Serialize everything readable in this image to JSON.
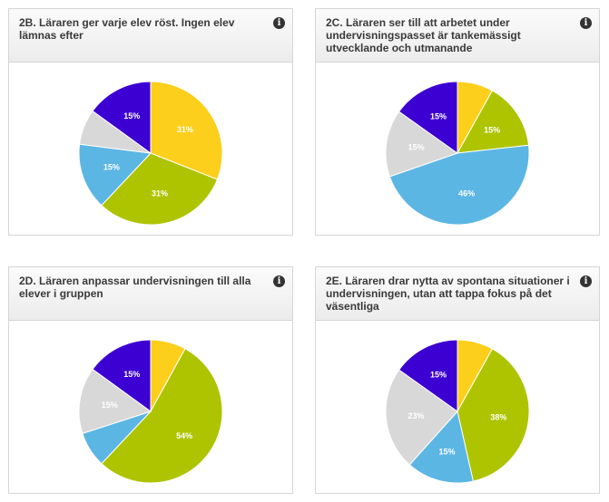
{
  "colors": {
    "yellow": "#fccf1c",
    "green": "#aec400",
    "blue": "#5cb6e3",
    "grey": "#d8d8d8",
    "purple": "#3d00d2"
  },
  "info_icon": "info-icon",
  "chart_data": [
    {
      "type": "pie",
      "title": "2B. Läraren ger varje elev röst. Ingen elev lämnas efter",
      "slices": [
        {
          "color": "yellow",
          "value": 31,
          "label": "31%"
        },
        {
          "color": "green",
          "value": 31,
          "label": "31%"
        },
        {
          "color": "blue",
          "value": 15,
          "label": "15%"
        },
        {
          "color": "grey",
          "value": 8,
          "label": ""
        },
        {
          "color": "purple",
          "value": 15,
          "label": "15%"
        }
      ]
    },
    {
      "type": "pie",
      "title": "2C. Läraren ser till att arbetet under undervisningspasset är tankemässigt utvecklande och utmanande",
      "slices": [
        {
          "color": "yellow",
          "value": 8,
          "label": ""
        },
        {
          "color": "green",
          "value": 15,
          "label": "15%"
        },
        {
          "color": "blue",
          "value": 46,
          "label": "46%"
        },
        {
          "color": "grey",
          "value": 15,
          "label": "15%"
        },
        {
          "color": "purple",
          "value": 15,
          "label": "15%"
        }
      ]
    },
    {
      "type": "pie",
      "title": "2D. Läraren anpassar undervisningen till alla elever i gruppen",
      "slices": [
        {
          "color": "yellow",
          "value": 8,
          "label": ""
        },
        {
          "color": "green",
          "value": 54,
          "label": "54%"
        },
        {
          "color": "blue",
          "value": 8,
          "label": ""
        },
        {
          "color": "grey",
          "value": 15,
          "label": "15%"
        },
        {
          "color": "purple",
          "value": 15,
          "label": "15%"
        }
      ]
    },
    {
      "type": "pie",
      "title": "2E. Läraren drar nytta av spontana situationer i undervisningen, utan att tappa fokus på det väsentliga",
      "slices": [
        {
          "color": "yellow",
          "value": 8,
          "label": ""
        },
        {
          "color": "green",
          "value": 38,
          "label": "38%"
        },
        {
          "color": "blue",
          "value": 15,
          "label": "15%"
        },
        {
          "color": "grey",
          "value": 23,
          "label": "23%"
        },
        {
          "color": "purple",
          "value": 15,
          "label": "15%"
        }
      ]
    }
  ]
}
